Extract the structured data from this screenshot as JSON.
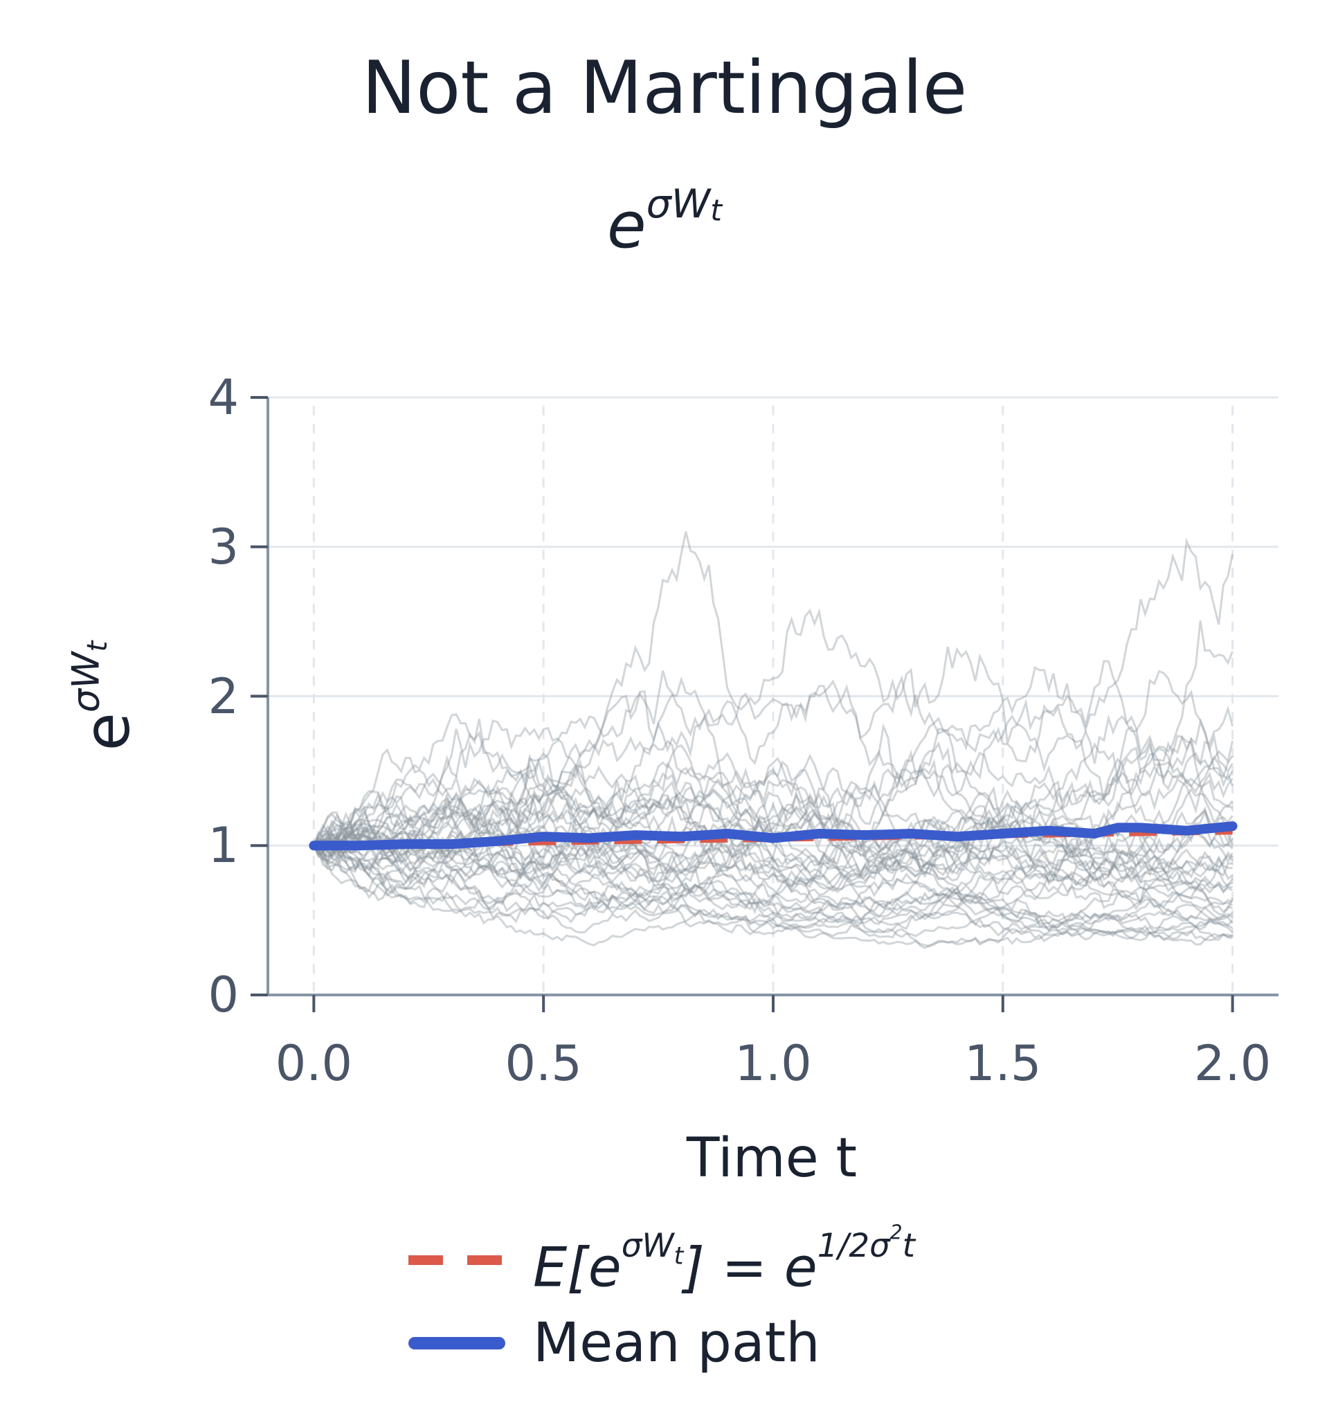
{
  "chart_data": {
    "type": "line",
    "title": "Not a Martingale",
    "subtitle": {
      "base": "e",
      "sup": "σW",
      "sub": "t"
    },
    "xlabel": "Time t",
    "ylabel": {
      "base": "e",
      "sup": "σW",
      "sub": "t"
    },
    "xlim": [
      -0.1,
      2.1
    ],
    "ylim": [
      0,
      4
    ],
    "xticks": [
      0.0,
      0.5,
      1.0,
      1.5,
      2.0
    ],
    "xtick_labels": [
      "0.0",
      "0.5",
      "1.0",
      "1.5",
      "2.0"
    ],
    "yticks": [
      0,
      1,
      2,
      3,
      4
    ],
    "ytick_labels": [
      "0",
      "1",
      "2",
      "3",
      "4"
    ],
    "grid": true,
    "legend_position": "bottom",
    "sample_paths": {
      "count": 40,
      "color": "#8a939c",
      "endpoints_at_t2": [
        2.95,
        2.3,
        1.8,
        1.7,
        1.6,
        1.55,
        1.5,
        1.45,
        1.4,
        1.3,
        1.25,
        1.2,
        1.15,
        1.1,
        1.05,
        1.0,
        0.98,
        0.95,
        0.92,
        0.9,
        0.88,
        0.85,
        0.8,
        0.78,
        0.75,
        0.72,
        0.7,
        0.65,
        0.62,
        0.6,
        0.58,
        0.55,
        0.52,
        0.5,
        0.48,
        0.45,
        0.42,
        0.4,
        0.39,
        0.38
      ]
    },
    "series": [
      {
        "name": "E[e^{σW_t}] = e^{½σ²t}",
        "style": "dashed",
        "color": "#dc5a4a",
        "x": [
          0.0,
          0.25,
          0.5,
          0.75,
          1.0,
          1.25,
          1.5,
          1.75,
          2.0
        ],
        "values": [
          1.0,
          1.011,
          1.023,
          1.034,
          1.046,
          1.058,
          1.07,
          1.082,
          1.095
        ]
      },
      {
        "name": "Mean path",
        "style": "solid",
        "color": "#3a5bcc",
        "x": [
          0.0,
          0.1,
          0.2,
          0.3,
          0.4,
          0.5,
          0.6,
          0.7,
          0.8,
          0.9,
          1.0,
          1.1,
          1.2,
          1.3,
          1.4,
          1.5,
          1.6,
          1.7,
          1.75,
          1.8,
          1.9,
          2.0
        ],
        "values": [
          1.0,
          1.0,
          1.01,
          1.01,
          1.03,
          1.06,
          1.05,
          1.07,
          1.06,
          1.08,
          1.05,
          1.08,
          1.07,
          1.08,
          1.06,
          1.08,
          1.1,
          1.08,
          1.12,
          1.12,
          1.1,
          1.13
        ]
      }
    ],
    "legend": [
      {
        "label_parts": {
          "E": "E[e",
          "sup1": "σW",
          "sub1": "t",
          "mid": "] = e",
          "frac": "1/2",
          "tail": "σ",
          "sup2": "2",
          "t": "t"
        },
        "swatch": "dashed",
        "color": "#dc5a4a"
      },
      {
        "label": "Mean path",
        "swatch": "solid",
        "color": "#3a5bcc"
      }
    ]
  }
}
